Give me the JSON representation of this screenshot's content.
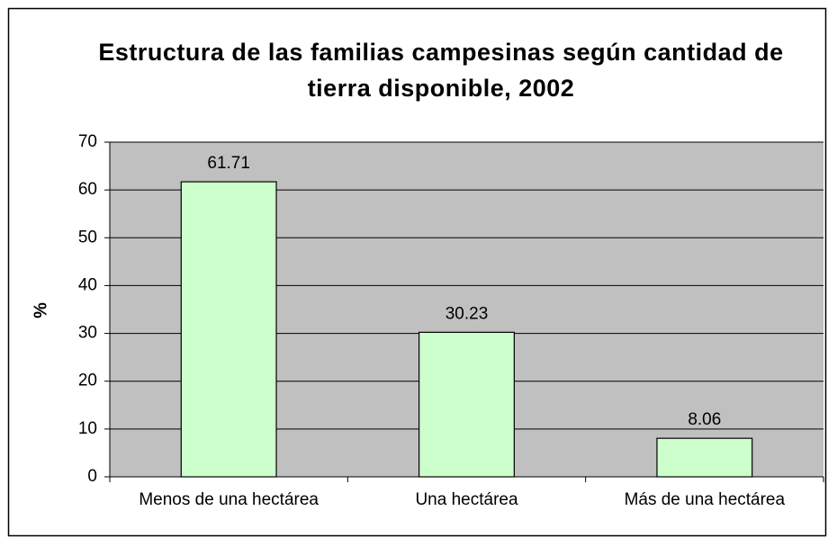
{
  "chart_data": {
    "type": "bar",
    "title": "Estructura de las familias campesinas según cantidad de tierra disponible, 2002",
    "ylabel": "%",
    "categories": [
      "Menos de una hectárea",
      "Una hectárea",
      "Más de una hectárea"
    ],
    "values": [
      61.71,
      30.23,
      8.06
    ],
    "value_labels": [
      "61.71",
      "30.23",
      "8.06"
    ],
    "color": "#ccffcc",
    "ylim": [
      0,
      70
    ],
    "yticks": [
      0,
      10,
      20,
      30,
      40,
      50,
      60,
      70
    ],
    "grid": true
  }
}
